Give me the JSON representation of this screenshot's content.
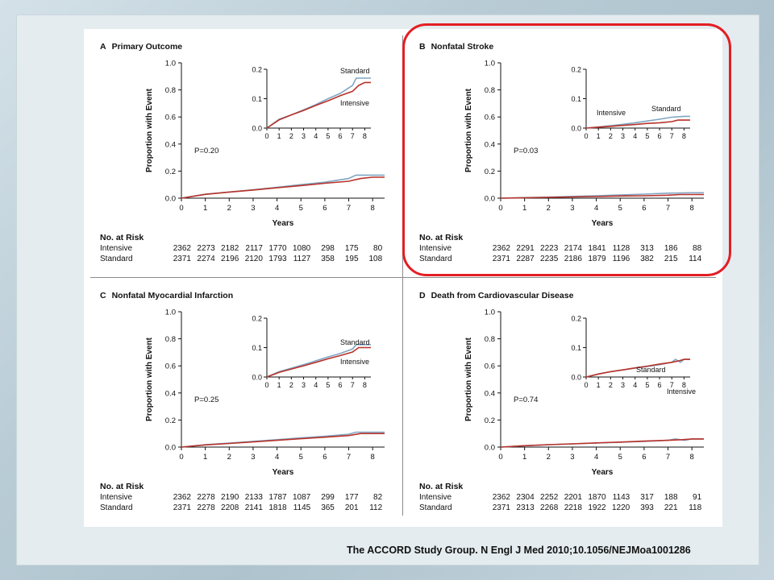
{
  "citation": "The ACCORD Study Group. N Engl J Med 2010;10.1056/NEJMoa1001286",
  "colors": {
    "standard": "#7fa6c3",
    "intensive": "#b8322a",
    "highlight": "#e31e24"
  },
  "chart_data": [
    {
      "type": "line",
      "letter": "A",
      "title": "Primary Outcome",
      "xlabel": "Years",
      "ylabel": "Proportion with Event",
      "p_value": "P=0.20",
      "xlim": [
        0,
        8.5
      ],
      "ylim": [
        0,
        1.0
      ],
      "x_ticks": [
        "0",
        "1",
        "2",
        "3",
        "4",
        "5",
        "6",
        "7",
        "8"
      ],
      "y_ticks": [
        "0.0",
        "0.2",
        "0.4",
        "0.6",
        "0.8",
        "1.0"
      ],
      "inset": {
        "ylim": [
          0,
          0.2
        ],
        "y_ticks": [
          "0.0",
          "0.1",
          "0.2"
        ],
        "x_ticks": [
          "0",
          "1",
          "2",
          "3",
          "4",
          "5",
          "6",
          "7",
          "8"
        ],
        "labels": [
          "Standard",
          "Intensive"
        ]
      },
      "series": [
        {
          "name": "Standard",
          "points": [
            [
              0,
              0
            ],
            [
              1,
              0.03
            ],
            [
              2,
              0.045
            ],
            [
              3,
              0.062
            ],
            [
              4,
              0.08
            ],
            [
              5,
              0.1
            ],
            [
              6,
              0.118
            ],
            [
              7,
              0.145
            ],
            [
              7.3,
              0.17
            ],
            [
              8,
              0.17
            ],
            [
              8.5,
              0.17
            ]
          ]
        },
        {
          "name": "Intensive",
          "points": [
            [
              0,
              0
            ],
            [
              1,
              0.028
            ],
            [
              2,
              0.045
            ],
            [
              3,
              0.06
            ],
            [
              4,
              0.077
            ],
            [
              5,
              0.093
            ],
            [
              6,
              0.11
            ],
            [
              7,
              0.125
            ],
            [
              7.5,
              0.145
            ],
            [
              8,
              0.155
            ],
            [
              8.5,
              0.155
            ]
          ]
        }
      ],
      "risk": {
        "title": "No. at Risk",
        "rows": [
          {
            "label": "Intensive",
            "values": [
              "2362",
              "2273",
              "2182",
              "2117",
              "1770",
              "1080",
              "298",
              "175",
              "80"
            ]
          },
          {
            "label": "Standard",
            "values": [
              "2371",
              "2274",
              "2196",
              "2120",
              "1793",
              "1127",
              "358",
              "195",
              "108"
            ]
          }
        ]
      }
    },
    {
      "type": "line",
      "letter": "B",
      "title": "Nonfatal Stroke",
      "xlabel": "Years",
      "ylabel": "Proportion with Event",
      "p_value": "P=0.03",
      "xlim": [
        0,
        8.5
      ],
      "ylim": [
        0,
        1.0
      ],
      "x_ticks": [
        "0",
        "1",
        "2",
        "3",
        "4",
        "5",
        "6",
        "7",
        "8"
      ],
      "y_ticks": [
        "0.0",
        "0.2",
        "0.4",
        "0.6",
        "0.8",
        "1.0"
      ],
      "inset": {
        "ylim": [
          0,
          0.2
        ],
        "y_ticks": [
          "0.0",
          "0.1",
          "0.2"
        ],
        "x_ticks": [
          "0",
          "1",
          "2",
          "3",
          "4",
          "5",
          "6",
          "7",
          "8"
        ],
        "labels": [
          "Intensive",
          "Standard"
        ]
      },
      "series": [
        {
          "name": "Standard",
          "points": [
            [
              0,
              0
            ],
            [
              1,
              0.004
            ],
            [
              2,
              0.008
            ],
            [
              3,
              0.013
            ],
            [
              4,
              0.018
            ],
            [
              5,
              0.024
            ],
            [
              6,
              0.03
            ],
            [
              7,
              0.037
            ],
            [
              8,
              0.04
            ],
            [
              8.5,
              0.04
            ]
          ]
        },
        {
          "name": "Intensive",
          "points": [
            [
              0,
              0
            ],
            [
              1,
              0.003
            ],
            [
              2,
              0.006
            ],
            [
              3,
              0.009
            ],
            [
              4,
              0.012
            ],
            [
              5,
              0.016
            ],
            [
              6,
              0.018
            ],
            [
              7,
              0.022
            ],
            [
              7.5,
              0.027
            ],
            [
              8,
              0.027
            ],
            [
              8.5,
              0.027
            ]
          ]
        }
      ],
      "risk": {
        "title": "No. at Risk",
        "rows": [
          {
            "label": "Intensive",
            "values": [
              "2362",
              "2291",
              "2223",
              "2174",
              "1841",
              "1128",
              "313",
              "186",
              "88"
            ]
          },
          {
            "label": "Standard",
            "values": [
              "2371",
              "2287",
              "2235",
              "2186",
              "1879",
              "1196",
              "382",
              "215",
              "114"
            ]
          }
        ]
      }
    },
    {
      "type": "line",
      "letter": "C",
      "title": "Nonfatal Myocardial Infarction",
      "xlabel": "Years",
      "ylabel": "Proportion with Event",
      "p_value": "P=0.25",
      "xlim": [
        0,
        8.5
      ],
      "ylim": [
        0,
        1.0
      ],
      "x_ticks": [
        "0",
        "1",
        "2",
        "3",
        "4",
        "5",
        "6",
        "7",
        "8"
      ],
      "y_ticks": [
        "0.0",
        "0.2",
        "0.4",
        "0.6",
        "0.8",
        "1.0"
      ],
      "inset": {
        "ylim": [
          0,
          0.2
        ],
        "y_ticks": [
          "0.0",
          "0.1",
          "0.2"
        ],
        "x_ticks": [
          "0",
          "1",
          "2",
          "3",
          "4",
          "5",
          "6",
          "7",
          "8"
        ],
        "labels": [
          "Standard",
          "Intensive"
        ]
      },
      "series": [
        {
          "name": "Standard",
          "points": [
            [
              0,
              0
            ],
            [
              1,
              0.018
            ],
            [
              2,
              0.03
            ],
            [
              3,
              0.042
            ],
            [
              4,
              0.055
            ],
            [
              5,
              0.068
            ],
            [
              6,
              0.08
            ],
            [
              7,
              0.095
            ],
            [
              7.3,
              0.11
            ],
            [
              8,
              0.11
            ],
            [
              8.5,
              0.11
            ]
          ]
        },
        {
          "name": "Intensive",
          "points": [
            [
              0,
              0
            ],
            [
              1,
              0.016
            ],
            [
              2,
              0.027
            ],
            [
              3,
              0.038
            ],
            [
              4,
              0.05
            ],
            [
              5,
              0.062
            ],
            [
              6,
              0.073
            ],
            [
              7,
              0.085
            ],
            [
              7.5,
              0.1
            ],
            [
              8,
              0.1
            ],
            [
              8.5,
              0.1
            ]
          ]
        }
      ],
      "risk": {
        "title": "No. at Risk",
        "rows": [
          {
            "label": "Intensive",
            "values": [
              "2362",
              "2278",
              "2190",
              "2133",
              "1787",
              "1087",
              "299",
              "177",
              "82"
            ]
          },
          {
            "label": "Standard",
            "values": [
              "2371",
              "2278",
              "2208",
              "2141",
              "1818",
              "1145",
              "365",
              "201",
              "112"
            ]
          }
        ]
      }
    },
    {
      "type": "line",
      "letter": "D",
      "title": "Death from Cardiovascular Disease",
      "xlabel": "Years",
      "ylabel": "Proportion with Event",
      "p_value": "P=0.74",
      "xlim": [
        0,
        8.5
      ],
      "ylim": [
        0,
        1.0
      ],
      "x_ticks": [
        "0",
        "1",
        "2",
        "3",
        "4",
        "5",
        "6",
        "7",
        "8"
      ],
      "y_ticks": [
        "0.0",
        "0.2",
        "0.4",
        "0.6",
        "0.8",
        "1.0"
      ],
      "inset": {
        "ylim": [
          0,
          0.2
        ],
        "y_ticks": [
          "0.0",
          "0.1",
          "0.2"
        ],
        "x_ticks": [
          "0",
          "1",
          "2",
          "3",
          "4",
          "5",
          "6",
          "7",
          "8"
        ],
        "labels": [
          "Standard",
          "Intensive"
        ]
      },
      "series": [
        {
          "name": "Standard",
          "points": [
            [
              0,
              0
            ],
            [
              1,
              0.01
            ],
            [
              2,
              0.018
            ],
            [
              3,
              0.024
            ],
            [
              4,
              0.03
            ],
            [
              5,
              0.036
            ],
            [
              6,
              0.042
            ],
            [
              7,
              0.05
            ],
            [
              7.3,
              0.06
            ],
            [
              7.7,
              0.05
            ],
            [
              8,
              0.06
            ],
            [
              8.5,
              0.06
            ]
          ]
        },
        {
          "name": "Intensive",
          "points": [
            [
              0,
              0
            ],
            [
              1,
              0.01
            ],
            [
              2,
              0.018
            ],
            [
              3,
              0.024
            ],
            [
              4,
              0.031
            ],
            [
              5,
              0.037
            ],
            [
              6,
              0.044
            ],
            [
              7,
              0.05
            ],
            [
              7.6,
              0.055
            ],
            [
              8,
              0.06
            ],
            [
              8.5,
              0.06
            ]
          ]
        }
      ],
      "risk": {
        "title": "No. at Risk",
        "rows": [
          {
            "label": "Intensive",
            "values": [
              "2362",
              "2304",
              "2252",
              "2201",
              "1870",
              "1143",
              "317",
              "188",
              "91"
            ]
          },
          {
            "label": "Standard",
            "values": [
              "2371",
              "2313",
              "2268",
              "2218",
              "1922",
              "1220",
              "393",
              "221",
              "118"
            ]
          }
        ]
      }
    }
  ]
}
